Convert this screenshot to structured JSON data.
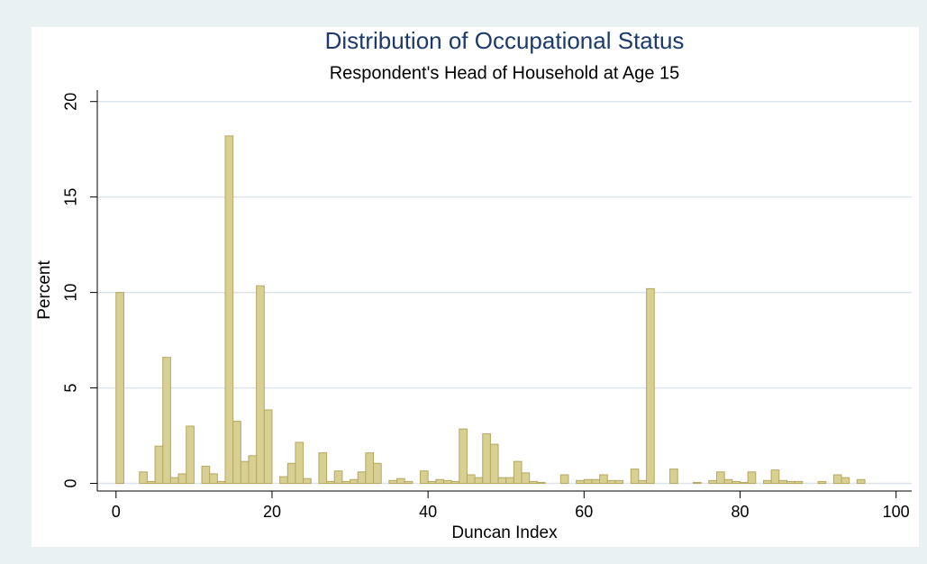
{
  "chart_data": {
    "type": "histogram",
    "title": "Distribution of Occupational Status",
    "subtitle": "Respondent's Head of Household at Age 15",
    "x_label": "Duncan Index",
    "y_label": "Percent",
    "bins": [
      0,
      1,
      2,
      3,
      4,
      5,
      6,
      7,
      8,
      9,
      10,
      11,
      12,
      13,
      14,
      15,
      16,
      17,
      18,
      19,
      20,
      21,
      22,
      23,
      24,
      25,
      26,
      27,
      28,
      29,
      30,
      31,
      32,
      33,
      34,
      35,
      36,
      37,
      38,
      39,
      40,
      41,
      42,
      43,
      44,
      45,
      46,
      47,
      48,
      49,
      50,
      51,
      52,
      53,
      54,
      55,
      56,
      57,
      58,
      59,
      60,
      61,
      62,
      63,
      64,
      65,
      66,
      67,
      68,
      69,
      70,
      71,
      72,
      73,
      74,
      75,
      76,
      77,
      78,
      79,
      80,
      81,
      82,
      83,
      84,
      85,
      86,
      87,
      88,
      89,
      90,
      91,
      92,
      93,
      94,
      95,
      96
    ],
    "values": [
      10,
      0,
      0,
      0.6,
      0.1,
      1.95,
      6.6,
      0.3,
      0.5,
      3,
      0,
      0.9,
      0.5,
      0.1,
      18.2,
      3.25,
      1.15,
      1.45,
      10.35,
      3.85,
      0,
      0.35,
      1.05,
      2.15,
      0.25,
      0,
      1.6,
      0.1,
      0.65,
      0.1,
      0.2,
      0.6,
      1.6,
      1.05,
      0,
      0.15,
      0.25,
      0.1,
      0,
      0.65,
      0.1,
      0.2,
      0.15,
      0.1,
      2.85,
      0.45,
      0.3,
      2.6,
      2.05,
      0.3,
      0.3,
      1.15,
      0.55,
      0.1,
      0.05,
      0,
      0,
      0.45,
      0,
      0.15,
      0.2,
      0.2,
      0.45,
      0.15,
      0.15,
      0,
      0.75,
      0.15,
      10.2,
      0,
      0,
      0.75,
      0,
      0,
      0.05,
      0,
      0.15,
      0.6,
      0.2,
      0.1,
      0.05,
      0.6,
      0,
      0.15,
      0.7,
      0.15,
      0.1,
      0.1,
      0,
      0,
      0.1,
      0,
      0.45,
      0.3,
      0,
      0.2
    ],
    "color": "#d8cf93",
    "edge_color": "#b5a862",
    "xlim": [
      -2.4,
      102
    ],
    "ylim": [
      -0.4,
      20.6
    ],
    "xticks": [
      0,
      20,
      40,
      60,
      80,
      100
    ],
    "yticks": [
      0,
      5,
      10,
      15,
      20
    ],
    "grid": true
  }
}
